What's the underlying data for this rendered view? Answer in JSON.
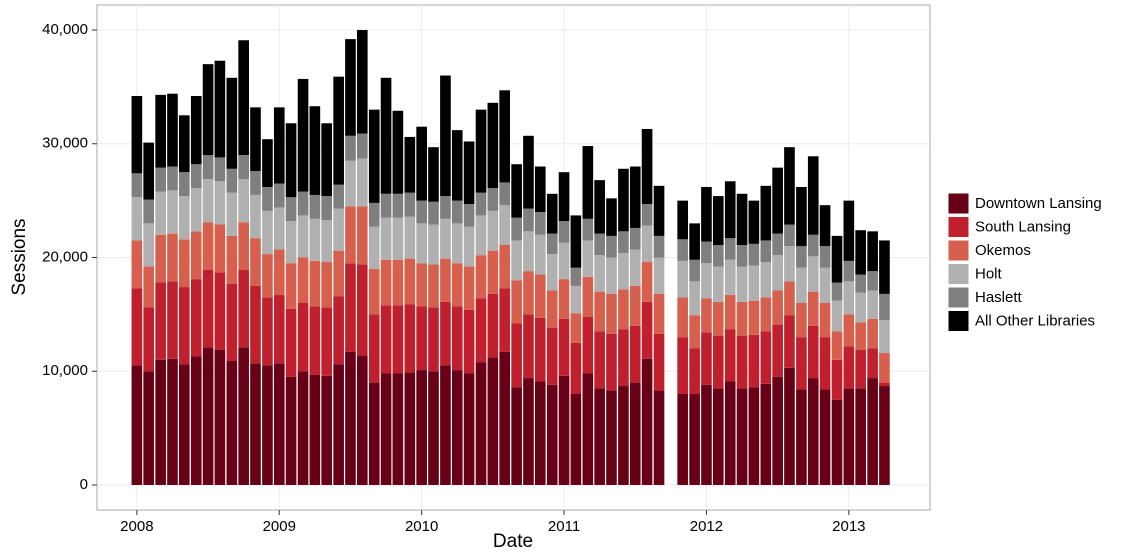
{
  "chart_data": {
    "type": "bar",
    "stacked": true,
    "xlabel": "Date",
    "ylabel": "Sessions",
    "x": [
      2008,
      2008.083,
      2008.167,
      2008.25,
      2008.333,
      2008.417,
      2008.5,
      2008.583,
      2008.667,
      2008.75,
      2008.833,
      2008.917,
      2009,
      2009.083,
      2009.167,
      2009.25,
      2009.333,
      2009.417,
      2009.5,
      2009.583,
      2009.667,
      2009.75,
      2009.833,
      2009.917,
      2010,
      2010.083,
      2010.167,
      2010.25,
      2010.333,
      2010.417,
      2010.5,
      2010.583,
      2010.667,
      2010.75,
      2010.833,
      2010.917,
      2011,
      2011.083,
      2011.167,
      2011.25,
      2011.333,
      2011.417,
      2011.5,
      2011.583,
      2011.667,
      2011.75,
      2011.833,
      2011.917,
      2012,
      2012.083,
      2012.167,
      2012.25,
      2012.333,
      2012.417,
      2012.5,
      2012.583,
      2012.667,
      2012.75,
      2012.833,
      2012.917,
      2013,
      2013.083,
      2013.167,
      2013.25
    ],
    "series": [
      {
        "name": "Downtown Lansing",
        "color": "#670016",
        "values": [
          10500,
          10000,
          11000,
          11100,
          10600,
          11300,
          12100,
          11900,
          10900,
          12100,
          10700,
          10500,
          10700,
          9500,
          10000,
          9700,
          9600,
          10600,
          11700,
          11400,
          9000,
          9800,
          9800,
          9900,
          10100,
          10000,
          10500,
          10100,
          9800,
          10800,
          11200,
          11700,
          8600,
          9400,
          9100,
          8800,
          9600,
          8000,
          9800,
          8500,
          8300,
          8700,
          9000,
          11100,
          8300,
          null,
          8000,
          8000,
          8800,
          8500,
          9100,
          8500,
          8600,
          8900,
          9500,
          10300,
          8400,
          9400,
          8400,
          7500,
          8500,
          8500,
          9400,
          8700
        ]
      },
      {
        "name": "South Lansing",
        "color": "#c0202e",
        "values": [
          6800,
          5600,
          6800,
          6800,
          6800,
          6800,
          6800,
          6800,
          6800,
          6800,
          6800,
          6000,
          6000,
          6000,
          6000,
          6000,
          6000,
          6000,
          7800,
          8000,
          6000,
          6000,
          6000,
          6000,
          5600,
          5600,
          5600,
          5600,
          5600,
          5600,
          5600,
          5600,
          5600,
          5600,
          5600,
          5000,
          5000,
          4500,
          5000,
          5000,
          5000,
          5000,
          5000,
          5000,
          5000,
          null,
          5000,
          4000,
          4600,
          4600,
          4600,
          4600,
          4600,
          4600,
          4600,
          4600,
          4600,
          4600,
          4600,
          3500,
          3700,
          3400,
          2600,
          300
        ]
      },
      {
        "name": "Okemos",
        "color": "#d6604d",
        "values": [
          4200,
          3600,
          4200,
          4200,
          4200,
          4200,
          4200,
          4200,
          4200,
          4200,
          4200,
          3800,
          4000,
          4000,
          4000,
          4000,
          4000,
          4000,
          5000,
          5100,
          4000,
          4000,
          4000,
          4000,
          3800,
          3800,
          3800,
          3800,
          3800,
          3800,
          3800,
          3800,
          3800,
          3800,
          3800,
          3300,
          3500,
          2600,
          3500,
          3500,
          3500,
          3500,
          3500,
          3500,
          3500,
          null,
          3500,
          2900,
          3000,
          3000,
          3000,
          3000,
          3000,
          3000,
          3000,
          3000,
          3000,
          3000,
          3000,
          2500,
          2800,
          2400,
          2600,
          2600
        ]
      },
      {
        "name": "Holt",
        "color": "#b0b0b0",
        "values": [
          3800,
          3800,
          3800,
          3800,
          3800,
          3800,
          3800,
          3800,
          3800,
          3800,
          3800,
          3800,
          3700,
          3700,
          3700,
          3700,
          3700,
          3700,
          4000,
          4200,
          3700,
          3700,
          3700,
          3700,
          3500,
          3500,
          3500,
          3500,
          3500,
          3500,
          3500,
          3500,
          3500,
          3500,
          3500,
          3200,
          3200,
          2400,
          3200,
          3200,
          3200,
          3200,
          3200,
          3200,
          3200,
          null,
          3200,
          3000,
          3100,
          3100,
          3100,
          3100,
          3100,
          3100,
          3100,
          3100,
          3100,
          3100,
          3100,
          2700,
          2900,
          2600,
          2500,
          2900
        ]
      },
      {
        "name": "Haslett",
        "color": "#7f7f7f",
        "values": [
          2100,
          2100,
          2100,
          2100,
          2100,
          2100,
          2100,
          2100,
          2100,
          2100,
          2100,
          2100,
          2100,
          2100,
          2100,
          2100,
          2100,
          2100,
          2200,
          2200,
          2100,
          2100,
          2100,
          2100,
          2000,
          2000,
          2000,
          2000,
          2000,
          2000,
          2000,
          2000,
          2000,
          2000,
          2000,
          1800,
          1900,
          1600,
          1900,
          1900,
          1900,
          1900,
          1900,
          1900,
          1900,
          null,
          1900,
          1900,
          1900,
          1900,
          1900,
          1900,
          1900,
          1900,
          1900,
          1900,
          1900,
          1900,
          1900,
          1600,
          1800,
          1600,
          1700,
          2300
        ]
      },
      {
        "name": "All Other Libraries",
        "color": "#000000",
        "values": [
          6800,
          5000,
          6400,
          6400,
          5000,
          6000,
          8000,
          8500,
          8000,
          10100,
          5600,
          4200,
          6700,
          6500,
          9900,
          7800,
          6400,
          9500,
          8500,
          9100,
          8200,
          10200,
          7300,
          4900,
          6500,
          4800,
          10600,
          6200,
          5500,
          7300,
          7500,
          8100,
          4700,
          6400,
          4000,
          3500,
          4300,
          4600,
          6400,
          4700,
          3300,
          5500,
          5400,
          6600,
          4400,
          null,
          3400,
          3200,
          4800,
          4300,
          5000,
          4500,
          3800,
          4800,
          5800,
          6800,
          5200,
          6900,
          3600,
          4100,
          5300,
          3900,
          3500,
          4700
        ]
      }
    ],
    "xlim": [
      2007.72,
      2013.57
    ],
    "xticks": [
      2008,
      2009,
      2010,
      2011,
      2012,
      2013
    ],
    "ylim": [
      -2200,
      42200
    ],
    "yticks": [
      0,
      {
        "value": 10000,
        "label": "10,000"
      },
      {
        "value": 20000,
        "label": "20,000"
      },
      {
        "value": 30000,
        "label": "30,000"
      },
      {
        "value": 40000,
        "label": "40,000"
      }
    ],
    "grid": true,
    "legend": "right"
  }
}
